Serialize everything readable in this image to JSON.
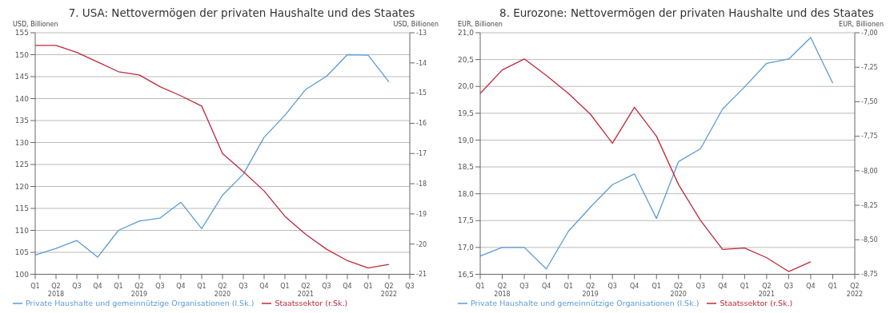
{
  "chart_data": [
    {
      "type": "line",
      "title": "7. USA: Nettovermögen der privaten Haushalte und des Staates",
      "ylabel": "USD, Billionen",
      "y2label": "USD, Billionen",
      "categories": [
        "Q1",
        "Q2\n2018",
        "Q3",
        "Q4",
        "Q1",
        "Q2\n2019",
        "Q3",
        "Q4",
        "Q1",
        "Q2\n2020",
        "Q3",
        "Q4",
        "Q1",
        "Q2\n2021",
        "Q3",
        "Q4",
        "Q1",
        "Q2\n2022",
        "Q3"
      ],
      "series": [
        {
          "name": "Private Haushalte und gemeinnützige Organisationen (l.Sk.)",
          "color": "#5b9bd5",
          "values": [
            104.4,
            105.9,
            107.7,
            103.9,
            110.0,
            112.1,
            112.8,
            116.4,
            110.4,
            118.0,
            122.8,
            131.2,
            136.2,
            142.1,
            145.1,
            150.0,
            149.9,
            143.8,
            null
          ]
        },
        {
          "name": "Staatssektor (r.Sk.)",
          "color": "#c0283a",
          "axis": "y2",
          "values": [
            -13.42,
            -13.42,
            -13.65,
            -13.97,
            -14.29,
            -14.4,
            -14.79,
            -15.09,
            -15.43,
            -17.0,
            -17.6,
            -18.24,
            -19.08,
            -19.68,
            -20.17,
            -20.55,
            -20.79,
            -20.67,
            null
          ]
        }
      ],
      "ylim": [
        100,
        155
      ],
      "yticks": [
        100,
        105,
        110,
        115,
        120,
        125,
        130,
        135,
        140,
        145,
        150,
        155
      ],
      "y2lim": [
        -21,
        -13
      ],
      "y2ticks": [
        -21,
        -20,
        -19,
        -18,
        -17,
        -16,
        -15,
        -14,
        -13
      ],
      "grid": "y",
      "legend": "bottom",
      "marker": "none",
      "line_style": "solid"
    },
    {
      "type": "line",
      "title": "8. Eurozone: Nettovermögen der privaten Haushalte und des Staates",
      "ylabel": "EUR, Billionen",
      "y2label": "EUR, Billionen",
      "categories": [
        "Q1",
        "Q2\n2018",
        "Q3",
        "Q4",
        "Q1",
        "Q2\n2019",
        "Q3",
        "Q4",
        "Q1",
        "Q2\n2020",
        "Q3",
        "Q4",
        "Q1",
        "Q2\n2021",
        "Q3",
        "Q4",
        "Q1",
        "Q2\n2022"
      ],
      "series": [
        {
          "name": "Private Haushalte und gemeinnützige Organisationen  (l.Sk.)",
          "color": "#5b9bd5",
          "values": [
            16.84,
            17.0,
            17.0,
            16.6,
            17.3,
            17.75,
            18.17,
            18.37,
            17.54,
            18.6,
            18.84,
            19.58,
            19.99,
            20.43,
            20.51,
            20.91,
            20.06,
            null
          ]
        },
        {
          "name": "Staatssektor (r.Sk.)",
          "color": "#c0283a",
          "axis": "y2",
          "values": [
            -7.44,
            -7.27,
            -7.19,
            -7.31,
            -7.44,
            -7.59,
            -7.8,
            -7.54,
            -7.75,
            -8.1,
            -8.36,
            -8.57,
            -8.56,
            -8.63,
            -8.73,
            -8.66,
            null,
            null
          ]
        }
      ],
      "ylim": [
        16.5,
        21
      ],
      "yticks": [
        {
          "value": 16.5,
          "label": "16,5"
        },
        {
          "value": 17,
          "label": "17,0"
        },
        {
          "value": 17.5,
          "label": "17,5"
        },
        {
          "value": 18,
          "label": "18,0"
        },
        {
          "value": 18.5,
          "label": "18,5"
        },
        {
          "value": 19,
          "label": "19,0"
        },
        {
          "value": 19.5,
          "label": "19,5"
        },
        {
          "value": 20,
          "label": "20,0"
        },
        {
          "value": 20.5,
          "label": "20,5"
        },
        {
          "value": 21,
          "label": "21,0"
        }
      ],
      "y2lim": [
        -8.75,
        -7
      ],
      "y2ticks": [
        {
          "value": -8.75,
          "label": "-8,75"
        },
        {
          "value": -8.5,
          "label": "-8,50"
        },
        {
          "value": -8.25,
          "label": "-8,25"
        },
        {
          "value": -8,
          "label": "-8,00"
        },
        {
          "value": -7.75,
          "label": "-7,75"
        },
        {
          "value": -7.5,
          "label": "-7,50"
        },
        {
          "value": -7.25,
          "label": "-7,25"
        },
        {
          "value": -7,
          "label": "-7,00"
        }
      ],
      "grid": "y",
      "legend": "bottom",
      "marker": "none",
      "line_style": "solid"
    }
  ]
}
